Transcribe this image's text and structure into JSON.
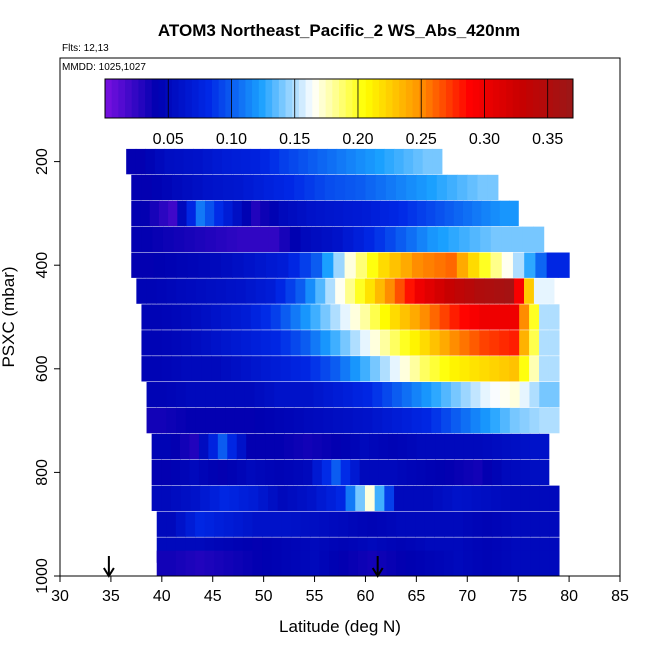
{
  "chart_data": {
    "type": "heatmap",
    "title": "ATOM3 Northeast_Pacific_2 WS_Abs_420nm",
    "annotations": [
      "Flts: 12,13",
      "MMDD: 1025,1027"
    ],
    "xlabel": "Latitude (deg N)",
    "ylabel": "PSXC (mbar)",
    "xlim": [
      30,
      85
    ],
    "ylim": [
      1000,
      0
    ],
    "x_ticks": [
      30,
      35,
      40,
      45,
      50,
      55,
      60,
      65,
      70,
      75,
      80,
      85
    ],
    "y_ticks": [
      200,
      400,
      600,
      800,
      1000
    ],
    "colorbar": {
      "range": [
        0.0,
        0.37
      ],
      "ticks": [
        0.05,
        0.1,
        0.15,
        0.2,
        0.25,
        0.3,
        0.35
      ],
      "tick_labels": [
        "0.05",
        "0.10",
        "0.15",
        "0.20",
        "0.25",
        "0.30",
        "0.35"
      ],
      "colors": [
        "#7a10e0",
        "#0000b0",
        "#0028e6",
        "#1aa0ff",
        "#ffffff",
        "#ffff00",
        "#ff9900",
        "#ff0000",
        "#c80000",
        "#9a1818"
      ]
    },
    "arrows_lat": [
      34.8,
      61.2
    ],
    "rows": [
      {
        "p": 200,
        "lat": [
          36.5,
          67.5
        ],
        "v": [
          0.04,
          0.055,
          0.06,
          0.07,
          0.075,
          0.09,
          0.1,
          0.11,
          0.12,
          0.13,
          0.14
        ]
      },
      {
        "p": 250,
        "lat": [
          37.0,
          73.0
        ],
        "v": [
          0.04,
          0.05,
          0.06,
          0.065,
          0.075,
          0.085,
          0.095,
          0.1,
          0.11,
          0.12,
          0.13,
          0.14
        ]
      },
      {
        "p": 300,
        "lat": [
          37.0,
          75.0
        ],
        "v": [
          0.04,
          0.02,
          0.11,
          0.07,
          0.03,
          0.05,
          0.06,
          0.065,
          0.07,
          0.08,
          0.09,
          0.1,
          0.11,
          0.12
        ]
      },
      {
        "p": 350,
        "lat": [
          37.0,
          77.5
        ],
        "v": [
          0.04,
          0.035,
          0.03,
          0.025,
          0.025,
          0.05,
          0.06,
          0.08,
          0.1,
          0.12,
          0.13,
          0.14,
          0.14
        ]
      },
      {
        "p": 400,
        "lat": [
          37.0,
          80.0
        ],
        "v": [
          0.04,
          0.045,
          0.05,
          0.06,
          0.07,
          0.1,
          0.17,
          0.22,
          0.25,
          0.26,
          0.2,
          0.15,
          0.08
        ]
      },
      {
        "p": 450,
        "lat": [
          37.5,
          78.5
        ],
        "v": [
          0.045,
          0.05,
          0.055,
          0.06,
          0.07,
          0.1,
          0.15,
          0.2,
          0.25,
          0.3,
          0.33,
          0.35,
          0.36,
          0.16
        ]
      },
      {
        "p": 500,
        "lat": [
          38.0,
          79.0
        ],
        "v": [
          0.045,
          0.05,
          0.06,
          0.07,
          0.09,
          0.12,
          0.15,
          0.18,
          0.22,
          0.25,
          0.28,
          0.3,
          0.3,
          0.15
        ]
      },
      {
        "p": 550,
        "lat": [
          38.0,
          79.0
        ],
        "v": [
          0.045,
          0.05,
          0.06,
          0.07,
          0.08,
          0.1,
          0.13,
          0.16,
          0.19,
          0.22,
          0.25,
          0.27,
          0.28,
          0.15
        ]
      },
      {
        "p": 600,
        "lat": [
          38.0,
          79.0
        ],
        "v": [
          0.045,
          0.05,
          0.05,
          0.06,
          0.07,
          0.08,
          0.1,
          0.13,
          0.16,
          0.19,
          0.21,
          0.22,
          0.23,
          0.15
        ]
      },
      {
        "p": 650,
        "lat": [
          38.5,
          79.0
        ],
        "v": [
          0.045,
          0.05,
          0.05,
          0.05,
          0.06,
          0.06,
          0.07,
          0.08,
          0.1,
          0.12,
          0.14,
          0.16,
          0.17,
          0.14
        ]
      },
      {
        "p": 700,
        "lat": [
          38.5,
          79.0
        ],
        "v": [
          0.035,
          0.04,
          0.04,
          0.04,
          0.045,
          0.05,
          0.055,
          0.06,
          0.07,
          0.08,
          0.1,
          0.12,
          0.14,
          0.15
        ]
      },
      {
        "p": 750,
        "lat": [
          39.0,
          78.0
        ],
        "v": [
          0.045,
          0.03,
          0.1,
          0.04,
          0.04,
          0.035,
          0.04,
          0.05,
          0.045,
          0.05,
          0.05,
          0.05,
          0.055,
          0.06
        ]
      },
      {
        "p": 800,
        "lat": [
          39.0,
          78.0
        ],
        "v": [
          0.04,
          0.05,
          0.04,
          0.05,
          0.045,
          0.05,
          0.1,
          0.05,
          0.05,
          0.045,
          0.04,
          0.035,
          0.05,
          0.055
        ]
      },
      {
        "p": 850,
        "lat": [
          39.0,
          79.0
        ],
        "v": [
          0.05,
          0.06,
          0.08,
          0.07,
          0.05,
          0.06,
          0.08,
          0.17,
          0.05,
          0.05,
          0.06,
          0.055,
          0.05,
          0.05
        ]
      },
      {
        "p": 900,
        "lat": [
          39.5,
          79.0
        ],
        "v": [
          0.05,
          0.08,
          0.07,
          0.06,
          0.06,
          0.055,
          0.05,
          0.045,
          0.05,
          0.05,
          0.05,
          0.045,
          0.05,
          0.05
        ]
      },
      {
        "p": 950,
        "lat": [
          39.5,
          79.0
        ],
        "v": [
          0.05,
          0.05,
          0.045,
          0.04,
          0.045,
          0.05,
          0.045,
          0.05,
          0.045,
          0.05,
          0.05,
          0.045,
          0.05,
          0.05
        ]
      },
      {
        "p": 1000,
        "lat": [
          39.5,
          79.0
        ],
        "v": [
          0.035,
          0.03,
          0.035,
          0.04,
          0.045,
          0.05,
          0.04,
          0.035,
          0.04,
          0.045,
          0.05,
          0.045,
          0.05,
          0.05
        ]
      }
    ]
  }
}
